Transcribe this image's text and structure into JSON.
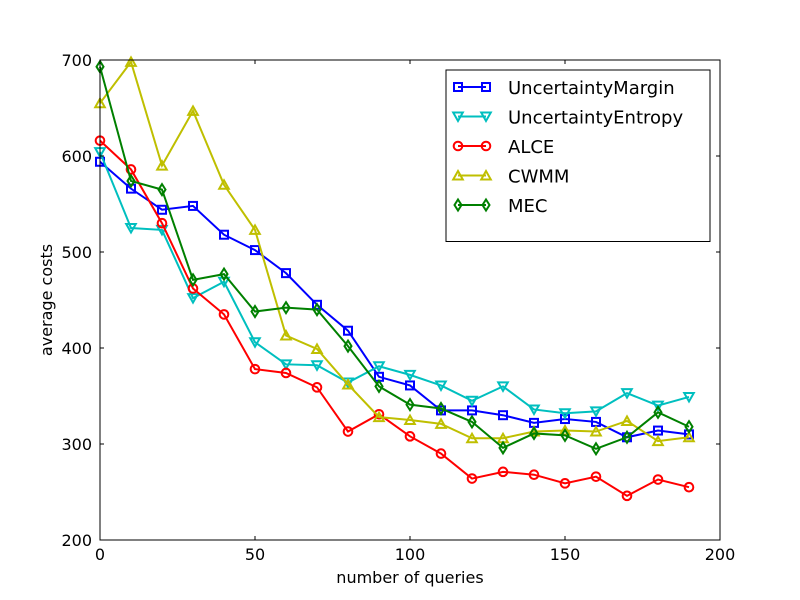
{
  "chart_data": {
    "type": "line",
    "title": "",
    "xlabel": "number of queries",
    "ylabel": "average costs",
    "xlim": [
      0,
      200
    ],
    "ylim": [
      200,
      700
    ],
    "xticks": [
      0,
      50,
      100,
      150,
      200
    ],
    "yticks": [
      200,
      300,
      400,
      500,
      600,
      700
    ],
    "xtick_labels": [
      "0",
      "50",
      "100",
      "150",
      "200"
    ],
    "ytick_labels": [
      "200",
      "300",
      "400",
      "500",
      "600",
      "700"
    ],
    "grid": false,
    "legend_position": "top-right",
    "x": [
      0,
      10,
      20,
      30,
      40,
      50,
      60,
      70,
      80,
      90,
      100,
      110,
      120,
      130,
      140,
      150,
      160,
      170,
      180,
      190
    ],
    "series": [
      {
        "name": "UncertaintyMargin",
        "color": "#0000ff",
        "marker": "square",
        "values": [
          594,
          566,
          544,
          548,
          518,
          502,
          478,
          445,
          418,
          370,
          361,
          335,
          335,
          330,
          322,
          326,
          323,
          307,
          314,
          310
        ]
      },
      {
        "name": "UncertaintyEntropy",
        "color": "#00bfbf",
        "marker": "triangle-down",
        "values": [
          604,
          525,
          523,
          452,
          469,
          406,
          383,
          382,
          364,
          381,
          372,
          361,
          345,
          360,
          336,
          332,
          334,
          353,
          340,
          349
        ]
      },
      {
        "name": "ALCE",
        "color": "#ff0000",
        "marker": "circle",
        "values": [
          616,
          586,
          530,
          462,
          435,
          378,
          374,
          359,
          313,
          331,
          308,
          290,
          264,
          271,
          268,
          259,
          266,
          246,
          263,
          255
        ]
      },
      {
        "name": "CWMM",
        "color": "#bfbf00",
        "marker": "triangle-up",
        "values": [
          655,
          698,
          590,
          647,
          570,
          523,
          413,
          399,
          362,
          328,
          325,
          321,
          306,
          306,
          313,
          314,
          313,
          324,
          303,
          307
        ]
      },
      {
        "name": "MEC",
        "color": "#008000",
        "marker": "diamond",
        "values": [
          693,
          574,
          565,
          471,
          477,
          438,
          442,
          440,
          402,
          360,
          341,
          337,
          323,
          296,
          311,
          309,
          295,
          307,
          333,
          318
        ]
      }
    ]
  }
}
